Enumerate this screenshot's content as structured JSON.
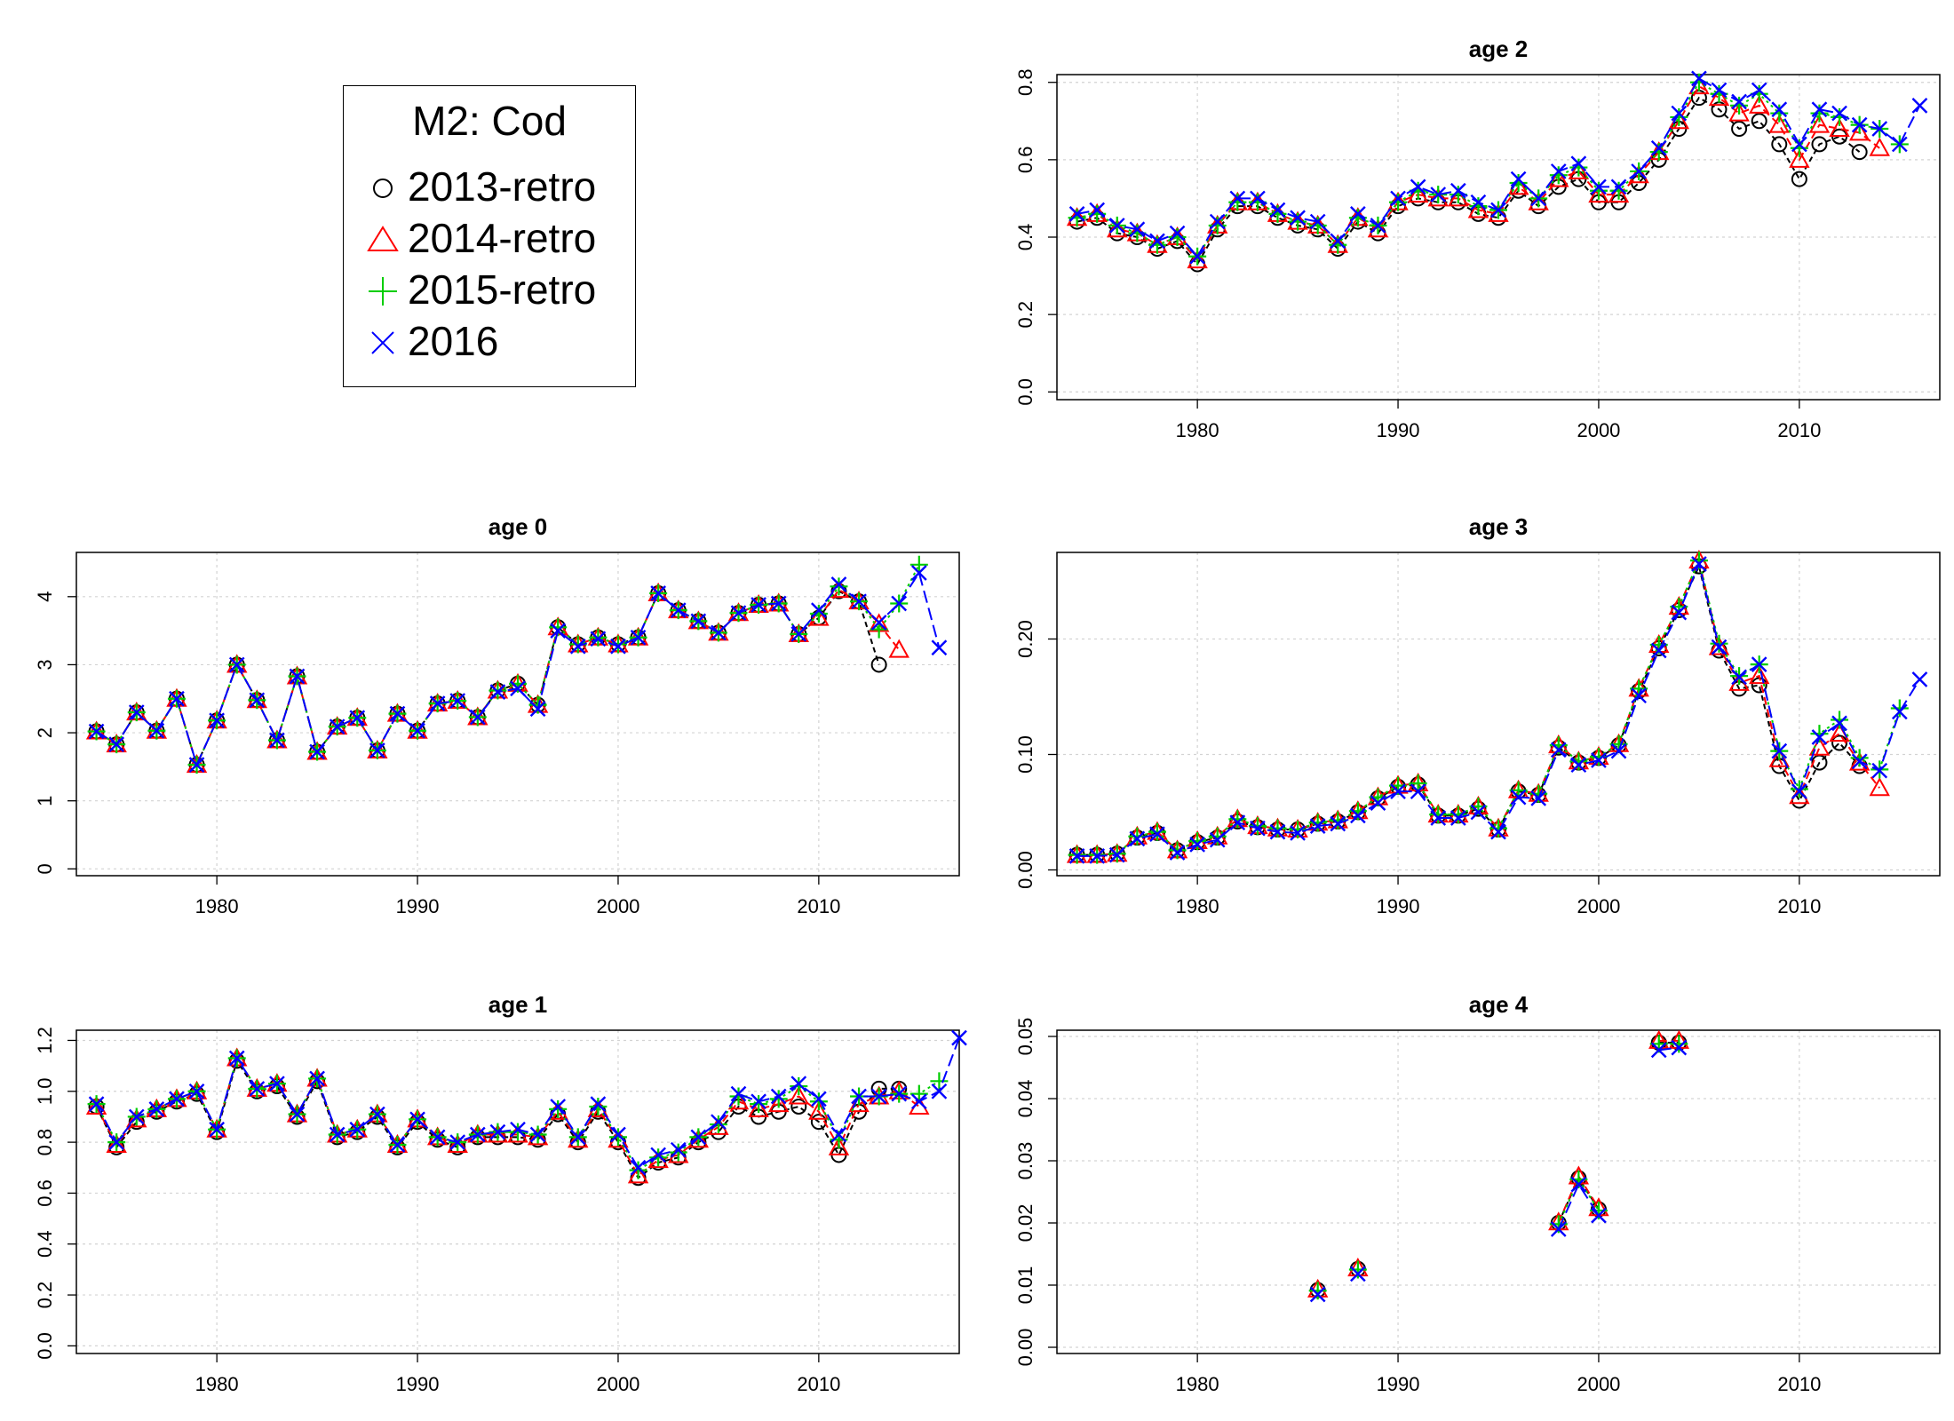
{
  "legend": {
    "title": "M2: Cod",
    "entries": [
      {
        "label": "2013-retro",
        "color": "#000000",
        "marker": "circle"
      },
      {
        "label": "2014-retro",
        "color": "#FF0000",
        "marker": "triangle"
      },
      {
        "label": "2015-retro",
        "color": "#00CD00",
        "marker": "plus"
      },
      {
        "label": "2016",
        "color": "#0000FF",
        "marker": "x"
      }
    ]
  },
  "chart_data": [
    {
      "type": "line",
      "title": "age 2",
      "xlabel": "",
      "ylabel": "",
      "xlim": [
        1973,
        2017
      ],
      "ylim": [
        -0.02,
        0.82
      ],
      "xticks": [
        1980,
        1990,
        2000,
        2010
      ],
      "yticks": [
        "0.0",
        "0.2",
        "0.4",
        "0.6",
        "0.8"
      ],
      "grid": true,
      "x_start": 1974,
      "series": [
        {
          "color": "#000000",
          "marker": "circle",
          "dash": "6,4",
          "values": [
            0.44,
            0.45,
            0.41,
            0.4,
            0.37,
            0.39,
            0.33,
            0.42,
            0.48,
            0.48,
            0.45,
            0.43,
            0.42,
            0.37,
            0.44,
            0.41,
            0.48,
            0.5,
            0.49,
            0.49,
            0.46,
            0.45,
            0.52,
            0.48,
            0.53,
            0.55,
            0.49,
            0.49,
            0.54,
            0.6,
            0.68,
            0.76,
            0.73,
            0.68,
            0.7,
            0.64,
            0.55,
            0.64,
            0.66,
            0.62
          ]
        },
        {
          "color": "#FF0000",
          "marker": "triangle",
          "dash": "9,5",
          "values": [
            0.45,
            0.46,
            0.42,
            0.41,
            0.38,
            0.4,
            0.34,
            0.43,
            0.49,
            0.49,
            0.46,
            0.44,
            0.43,
            0.38,
            0.45,
            0.42,
            0.49,
            0.51,
            0.5,
            0.5,
            0.47,
            0.46,
            0.53,
            0.49,
            0.55,
            0.57,
            0.51,
            0.51,
            0.56,
            0.62,
            0.7,
            0.79,
            0.76,
            0.72,
            0.74,
            0.69,
            0.6,
            0.69,
            0.68,
            0.67,
            0.63
          ]
        },
        {
          "color": "#00CD00",
          "marker": "plus",
          "dash": "3,4",
          "values": [
            0.45,
            0.46,
            0.43,
            0.41,
            0.38,
            0.4,
            0.35,
            0.43,
            0.49,
            0.49,
            0.46,
            0.44,
            0.43,
            0.38,
            0.45,
            0.43,
            0.49,
            0.52,
            0.51,
            0.51,
            0.48,
            0.47,
            0.54,
            0.5,
            0.56,
            0.58,
            0.52,
            0.52,
            0.57,
            0.62,
            0.71,
            0.8,
            0.77,
            0.74,
            0.77,
            0.72,
            0.63,
            0.72,
            0.71,
            0.69,
            0.68,
            0.64
          ]
        },
        {
          "color": "#0000FF",
          "marker": "x",
          "dash": "14,6",
          "values": [
            0.46,
            0.47,
            0.43,
            0.42,
            0.39,
            0.41,
            0.35,
            0.44,
            0.5,
            0.5,
            0.47,
            0.45,
            0.44,
            0.39,
            0.46,
            0.43,
            0.5,
            0.53,
            0.51,
            0.52,
            0.49,
            0.47,
            0.55,
            0.5,
            0.57,
            0.59,
            0.53,
            0.53,
            0.57,
            0.63,
            0.72,
            0.81,
            0.78,
            0.75,
            0.78,
            0.73,
            0.64,
            0.73,
            0.72,
            0.69,
            0.68,
            0.64,
            0.74
          ]
        }
      ]
    },
    {
      "type": "line",
      "title": "age 0",
      "xlabel": "",
      "ylabel": "",
      "xlim": [
        1973,
        2017
      ],
      "ylim": [
        -0.1,
        4.65
      ],
      "xticks": [
        1980,
        1990,
        2000,
        2010
      ],
      "yticks": [
        "0",
        "1",
        "2",
        "3",
        "4"
      ],
      "grid": true,
      "x_start": 1974,
      "series": [
        {
          "color": "#000000",
          "marker": "circle",
          "dash": "6,4",
          "values": [
            2.02,
            1.83,
            2.3,
            2.03,
            2.5,
            1.53,
            2.18,
            3.0,
            2.48,
            1.89,
            2.83,
            1.72,
            2.09,
            2.22,
            1.74,
            2.28,
            2.03,
            2.43,
            2.47,
            2.23,
            2.62,
            2.72,
            2.41,
            3.55,
            3.3,
            3.4,
            3.3,
            3.4,
            4.05,
            3.8,
            3.64,
            3.47,
            3.76,
            3.88,
            3.9,
            3.45,
            3.69,
            4.08,
            3.93,
            3.0
          ]
        },
        {
          "color": "#FF0000",
          "marker": "triangle",
          "dash": "9,5",
          "values": [
            2.02,
            1.83,
            2.3,
            2.03,
            2.5,
            1.53,
            2.18,
            3.0,
            2.48,
            1.89,
            2.83,
            1.72,
            2.09,
            2.22,
            1.74,
            2.28,
            2.03,
            2.43,
            2.47,
            2.23,
            2.62,
            2.72,
            2.41,
            3.55,
            3.3,
            3.4,
            3.3,
            3.4,
            4.05,
            3.8,
            3.64,
            3.47,
            3.76,
            3.88,
            3.9,
            3.45,
            3.69,
            4.1,
            3.93,
            3.6,
            3.22
          ]
        },
        {
          "color": "#00CD00",
          "marker": "plus",
          "dash": "3,4",
          "values": [
            2.02,
            1.83,
            2.3,
            2.03,
            2.5,
            1.53,
            2.18,
            3.0,
            2.48,
            1.89,
            2.83,
            1.72,
            2.09,
            2.22,
            1.74,
            2.28,
            2.03,
            2.43,
            2.47,
            2.23,
            2.62,
            2.72,
            2.41,
            3.55,
            3.3,
            3.4,
            3.3,
            3.4,
            4.05,
            3.8,
            3.64,
            3.47,
            3.76,
            3.88,
            3.9,
            3.45,
            3.75,
            4.15,
            3.93,
            3.52,
            3.9,
            4.47
          ]
        },
        {
          "color": "#0000FF",
          "marker": "x",
          "dash": "14,6",
          "values": [
            2.02,
            1.83,
            2.3,
            2.03,
            2.5,
            1.53,
            2.18,
            3.0,
            2.48,
            1.89,
            2.83,
            1.72,
            2.09,
            2.22,
            1.74,
            2.28,
            2.03,
            2.43,
            2.47,
            2.23,
            2.6,
            2.65,
            2.35,
            3.5,
            3.27,
            3.38,
            3.27,
            3.4,
            4.05,
            3.8,
            3.64,
            3.47,
            3.76,
            3.88,
            3.9,
            3.45,
            3.8,
            4.18,
            3.93,
            3.62,
            3.9,
            4.35,
            3.25
          ]
        }
      ]
    },
    {
      "type": "line",
      "title": "age 3",
      "xlabel": "",
      "ylabel": "",
      "xlim": [
        1973,
        2017
      ],
      "ylim": [
        -0.005,
        0.275
      ],
      "xticks": [
        1980,
        1990,
        2000,
        2010
      ],
      "yticks": [
        "0.00",
        "0.10",
        "0.20"
      ],
      "ytick_values": [
        0.0,
        0.1,
        0.2
      ],
      "grid": true,
      "x_start": 1974,
      "series": [
        {
          "color": "#000000",
          "marker": "circle",
          "dash": "6,4",
          "values": [
            0.013,
            0.013,
            0.014,
            0.028,
            0.032,
            0.017,
            0.024,
            0.028,
            0.042,
            0.037,
            0.035,
            0.035,
            0.04,
            0.042,
            0.05,
            0.062,
            0.072,
            0.074,
            0.047,
            0.047,
            0.053,
            0.035,
            0.068,
            0.065,
            0.106,
            0.093,
            0.097,
            0.108,
            0.155,
            0.192,
            0.225,
            0.263,
            0.19,
            0.157,
            0.16,
            0.09,
            0.06,
            0.093,
            0.11,
            0.09
          ]
        },
        {
          "color": "#FF0000",
          "marker": "triangle",
          "dash": "9,5",
          "values": [
            0.013,
            0.013,
            0.014,
            0.029,
            0.033,
            0.017,
            0.025,
            0.029,
            0.044,
            0.038,
            0.036,
            0.035,
            0.041,
            0.043,
            0.051,
            0.063,
            0.073,
            0.075,
            0.048,
            0.048,
            0.055,
            0.036,
            0.069,
            0.066,
            0.108,
            0.094,
            0.098,
            0.109,
            0.157,
            0.195,
            0.228,
            0.268,
            0.193,
            0.162,
            0.168,
            0.096,
            0.064,
            0.106,
            0.118,
            0.093,
            0.071
          ]
        },
        {
          "color": "#00CD00",
          "marker": "plus",
          "dash": "3,4",
          "values": [
            0.013,
            0.013,
            0.014,
            0.029,
            0.033,
            0.017,
            0.025,
            0.029,
            0.044,
            0.038,
            0.036,
            0.035,
            0.041,
            0.043,
            0.051,
            0.063,
            0.073,
            0.075,
            0.048,
            0.048,
            0.055,
            0.036,
            0.069,
            0.066,
            0.108,
            0.094,
            0.098,
            0.109,
            0.157,
            0.195,
            0.228,
            0.268,
            0.196,
            0.168,
            0.178,
            0.103,
            0.07,
            0.118,
            0.13,
            0.097,
            0.087,
            0.14
          ]
        },
        {
          "color": "#0000FF",
          "marker": "x",
          "dash": "14,6",
          "values": [
            0.012,
            0.012,
            0.013,
            0.027,
            0.031,
            0.015,
            0.022,
            0.026,
            0.041,
            0.036,
            0.033,
            0.032,
            0.038,
            0.04,
            0.047,
            0.058,
            0.068,
            0.068,
            0.045,
            0.045,
            0.05,
            0.033,
            0.063,
            0.062,
            0.104,
            0.091,
            0.095,
            0.103,
            0.151,
            0.19,
            0.223,
            0.265,
            0.193,
            0.167,
            0.178,
            0.103,
            0.068,
            0.115,
            0.127,
            0.094,
            0.086,
            0.137,
            0.165
          ]
        }
      ]
    },
    {
      "type": "line",
      "title": "age 1",
      "xlabel": "",
      "ylabel": "",
      "xlim": [
        1973,
        2017
      ],
      "ylim": [
        -0.03,
        1.24
      ],
      "xticks": [
        1980,
        1990,
        2000,
        2010
      ],
      "yticks": [
        "0.0",
        "0.2",
        "0.4",
        "0.6",
        "0.8",
        "1.0",
        "1.2"
      ],
      "grid": true,
      "x_start": 1974,
      "series": [
        {
          "color": "#000000",
          "marker": "circle",
          "dash": "6,4",
          "values": [
            0.94,
            0.78,
            0.88,
            0.92,
            0.96,
            0.99,
            0.84,
            1.12,
            1.0,
            1.02,
            0.9,
            1.04,
            0.82,
            0.84,
            0.9,
            0.78,
            0.88,
            0.81,
            0.78,
            0.82,
            0.82,
            0.82,
            0.81,
            0.91,
            0.8,
            0.92,
            0.8,
            0.66,
            0.72,
            0.74,
            0.8,
            0.84,
            0.94,
            0.9,
            0.92,
            0.94,
            0.88,
            0.75,
            0.92,
            1.01,
            1.01
          ]
        },
        {
          "color": "#FF0000",
          "marker": "triangle",
          "dash": "9,5",
          "values": [
            0.94,
            0.79,
            0.89,
            0.93,
            0.97,
            1.0,
            0.85,
            1.13,
            1.01,
            1.03,
            0.91,
            1.05,
            0.83,
            0.85,
            0.91,
            0.79,
            0.89,
            0.82,
            0.79,
            0.83,
            0.83,
            0.83,
            0.82,
            0.92,
            0.81,
            0.93,
            0.81,
            0.67,
            0.73,
            0.75,
            0.81,
            0.86,
            0.96,
            0.93,
            0.95,
            0.98,
            0.92,
            0.78,
            0.95,
            0.98,
            1.0,
            0.94
          ]
        },
        {
          "color": "#00CD00",
          "marker": "plus",
          "dash": "3,4",
          "values": [
            0.95,
            0.8,
            0.9,
            0.93,
            0.97,
            1.0,
            0.85,
            1.13,
            1.01,
            1.03,
            0.91,
            1.05,
            0.83,
            0.85,
            0.91,
            0.79,
            0.89,
            0.82,
            0.8,
            0.83,
            0.84,
            0.84,
            0.83,
            0.93,
            0.82,
            0.94,
            0.82,
            0.69,
            0.74,
            0.76,
            0.82,
            0.87,
            0.98,
            0.95,
            0.97,
            1.02,
            0.96,
            0.81,
            0.98,
            0.98,
            0.99,
            0.99,
            1.04
          ]
        },
        {
          "color": "#0000FF",
          "marker": "x",
          "dash": "14,6",
          "values": [
            0.95,
            0.8,
            0.9,
            0.93,
            0.97,
            1.0,
            0.85,
            1.13,
            1.01,
            1.03,
            0.91,
            1.05,
            0.83,
            0.85,
            0.91,
            0.79,
            0.89,
            0.82,
            0.8,
            0.83,
            0.84,
            0.85,
            0.83,
            0.94,
            0.82,
            0.95,
            0.83,
            0.7,
            0.75,
            0.77,
            0.82,
            0.88,
            0.99,
            0.96,
            0.98,
            1.03,
            0.97,
            0.83,
            0.98,
            0.98,
            0.99,
            0.96,
            1.0,
            1.21
          ]
        }
      ]
    },
    {
      "type": "line",
      "title": "age 4",
      "xlabel": "",
      "ylabel": "",
      "xlim": [
        1973,
        2017
      ],
      "ylim": [
        -0.001,
        0.051
      ],
      "xticks": [
        1980,
        1990,
        2000,
        2010
      ],
      "yticks": [
        "0.00",
        "0.01",
        "0.02",
        "0.03",
        "0.04",
        "0.05"
      ],
      "ytick_values": [
        0.0,
        0.01,
        0.02,
        0.03,
        0.04,
        0.05
      ],
      "grid": true,
      "x_start": 1974,
      "series": [
        {
          "color": "#000000",
          "marker": "circle",
          "dash": "6,4",
          "points": [
            [
              1986,
              0.0092
            ],
            [
              1988,
              0.0126
            ],
            [
              1998,
              0.02
            ],
            [
              1999,
              0.0272
            ],
            [
              2000,
              0.0222
            ],
            [
              2003,
              0.049
            ],
            [
              2004,
              0.049
            ]
          ]
        },
        {
          "color": "#FF0000",
          "marker": "triangle",
          "dash": "9,5",
          "points": [
            [
              1986,
              0.0093
            ],
            [
              1988,
              0.0127
            ],
            [
              1998,
              0.0201
            ],
            [
              1999,
              0.0275
            ],
            [
              2000,
              0.0224
            ],
            [
              2003,
              0.0493
            ],
            [
              2004,
              0.0493
            ]
          ]
        },
        {
          "color": "#00CD00",
          "marker": "plus",
          "dash": "3,4",
          "points": [
            [
              1986,
              0.0091
            ],
            [
              1988,
              0.0125
            ],
            [
              1998,
              0.0198
            ],
            [
              1999,
              0.027
            ],
            [
              2000,
              0.022
            ],
            [
              2003,
              0.0488
            ],
            [
              2004,
              0.0488
            ]
          ]
        },
        {
          "color": "#0000FF",
          "marker": "x",
          "dash": "14,6",
          "points": [
            [
              1986,
              0.0085
            ],
            [
              1988,
              0.0118
            ],
            [
              1998,
              0.019
            ],
            [
              1999,
              0.0262
            ],
            [
              2000,
              0.0212
            ],
            [
              2003,
              0.0478
            ],
            [
              2004,
              0.0482
            ]
          ]
        }
      ]
    }
  ]
}
